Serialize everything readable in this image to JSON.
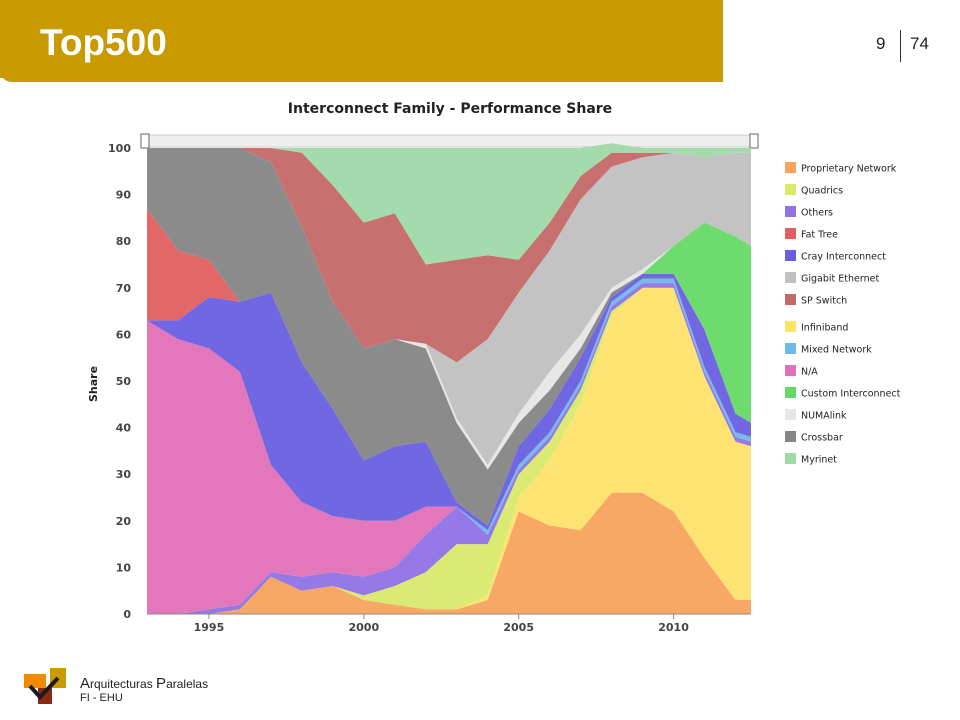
{
  "header": {
    "title": "Top500",
    "page_current": "9",
    "page_total": "74"
  },
  "footer": {
    "line1_cap1": "A",
    "line1_rest1": "rquitecturas ",
    "line1_cap2": "P",
    "line1_rest2": "aralelas",
    "line2": "FI - EHU"
  },
  "colors": {
    "Proprietary Network": "#f7a35c",
    "Quadrics": "#d8e96b",
    "Others": "#8f72e6",
    "Fat Tree": "#e06060",
    "Cray Interconnect": "#6a5fe0",
    "Gigabit Ethernet": "#c0c0c0",
    "SP Switch": "#c56868",
    "Infiniband": "#fde26a",
    "Mixed Network": "#6fb8e9",
    "N/A": "#e170b8",
    "Custom Interconnect": "#65d965",
    "NUMAlink": "#e6e6e6",
    "Crossbar": "#858585",
    "Myrinet": "#9ed9a8"
  },
  "chart_data": {
    "type": "area",
    "stacked": true,
    "title": "Interconnect Family - Performance Share",
    "ylabel": "Share",
    "xlabel": "",
    "xlim": [
      1993,
      2012.5
    ],
    "ylim": [
      0,
      100
    ],
    "y_ticks": [
      "0",
      "10",
      "20",
      "30",
      "40",
      "50",
      "60",
      "70",
      "80",
      "90",
      "100"
    ],
    "x_ticks": [
      "1995",
      "2000",
      "2005",
      "2010"
    ],
    "legend_position": "right",
    "legend": [
      "Proprietary Network",
      "Quadrics",
      "Others",
      "Fat Tree",
      "Cray Interconnect",
      "Gigabit Ethernet",
      "SP Switch",
      "Infiniband",
      "Mixed Network",
      "N/A",
      "Custom Interconnect",
      "NUMAlink",
      "Crossbar",
      "Myrinet"
    ],
    "x": [
      1993,
      1994,
      1995,
      1996,
      1997,
      1998,
      1999,
      2000,
      2001,
      2002,
      2003,
      2004,
      2005,
      2006,
      2007,
      2008,
      2009,
      2010,
      2011,
      2012,
      2012.5
    ],
    "series": [
      {
        "name": "Proprietary Network",
        "values": [
          0,
          0,
          0,
          1,
          8,
          5,
          6,
          3,
          2,
          1,
          1,
          3,
          22,
          19,
          18,
          26,
          26,
          22,
          12,
          3,
          3
        ]
      },
      {
        "name": "Infiniband",
        "values": [
          0,
          0,
          0,
          0,
          0,
          0,
          0,
          0,
          0,
          0,
          0,
          1,
          3,
          14,
          27,
          38,
          44,
          48,
          39,
          34,
          33
        ]
      },
      {
        "name": "Quadrics",
        "values": [
          0,
          0,
          0,
          0,
          0,
          0,
          0,
          1,
          4,
          8,
          14,
          11,
          5,
          4,
          3,
          1,
          0,
          0,
          0,
          0,
          0
        ]
      },
      {
        "name": "Others",
        "values": [
          0,
          0,
          1,
          1,
          1,
          3,
          3,
          4,
          4,
          8,
          8,
          2,
          1,
          1,
          1,
          1,
          1,
          1,
          1,
          1,
          1
        ]
      },
      {
        "name": "Mixed Network",
        "values": [
          0,
          0,
          0,
          0,
          0,
          0,
          0,
          0,
          0,
          0,
          0,
          1,
          1,
          1,
          1,
          1,
          1,
          1,
          1,
          1,
          1
        ]
      },
      {
        "name": "N/A",
        "values": [
          63,
          59,
          56,
          50,
          23,
          16,
          12,
          12,
          10,
          6,
          0,
          0,
          0,
          0,
          0,
          0,
          0,
          0,
          0,
          0,
          0
        ]
      },
      {
        "name": "Cray Interconnect",
        "values": [
          0,
          4,
          11,
          15,
          37,
          30,
          23,
          13,
          16,
          14,
          1,
          1,
          4,
          5,
          5,
          1,
          1,
          1,
          8,
          4,
          3
        ]
      },
      {
        "name": "Fat Tree",
        "values": [
          24,
          15,
          8,
          0,
          0,
          0,
          0,
          0,
          0,
          0,
          0,
          0,
          0,
          0,
          0,
          0,
          0,
          0,
          0,
          0,
          0
        ]
      },
      {
        "name": "Custom Interconnect",
        "values": [
          0,
          0,
          0,
          0,
          0,
          0,
          0,
          0,
          0,
          0,
          0,
          0,
          0,
          0,
          0,
          0,
          0,
          6,
          23,
          38,
          38
        ]
      },
      {
        "name": "Crossbar",
        "values": [
          13,
          22,
          24,
          33,
          28,
          29,
          23,
          24,
          23,
          20,
          17,
          12,
          5,
          4,
          2,
          1,
          0,
          0,
          0,
          0,
          0
        ]
      },
      {
        "name": "NUMAlink",
        "values": [
          0,
          0,
          0,
          0,
          0,
          0,
          0,
          0,
          0,
          1,
          1,
          1,
          2,
          4,
          3,
          1,
          1,
          0,
          0,
          0,
          0
        ]
      },
      {
        "name": "Gigabit Ethernet",
        "values": [
          0,
          0,
          0,
          0,
          0,
          0,
          0,
          0,
          0,
          0,
          12,
          27,
          26,
          26,
          29,
          26,
          24,
          20,
          14,
          18,
          20
        ]
      },
      {
        "name": "SP Switch",
        "values": [
          0,
          0,
          0,
          0,
          3,
          16,
          25,
          27,
          27,
          17,
          22,
          18,
          7,
          6,
          5,
          3,
          1,
          0,
          0,
          0,
          0
        ]
      },
      {
        "name": "Myrinet",
        "values": [
          0,
          0,
          0,
          0,
          0,
          1,
          8,
          16,
          14,
          25,
          24,
          23,
          24,
          16,
          6,
          2,
          1,
          1,
          2,
          1,
          1
        ]
      }
    ]
  }
}
